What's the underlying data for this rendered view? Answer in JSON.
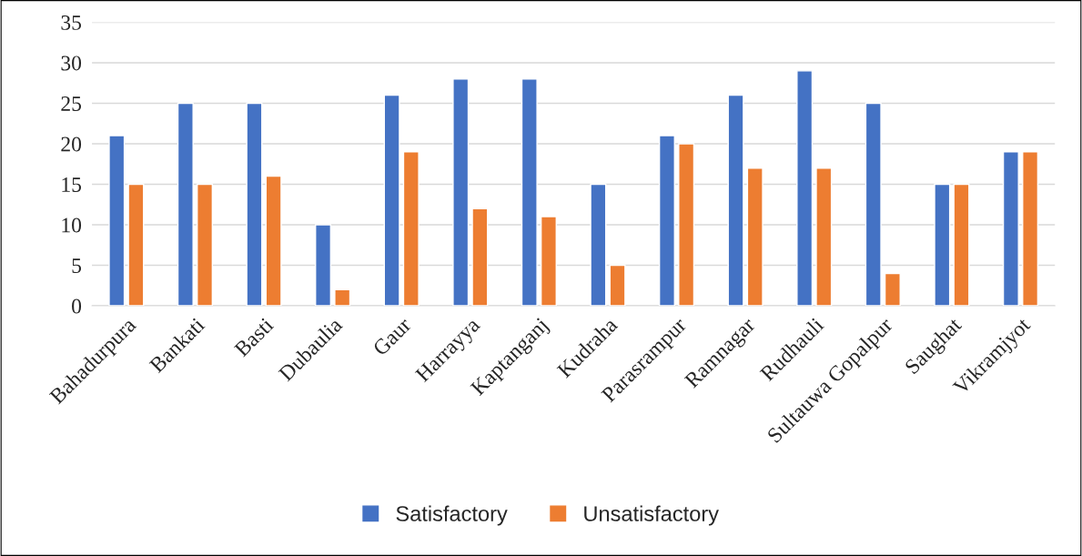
{
  "chart_data": {
    "type": "bar",
    "categories": [
      "Bahadurpura",
      "Bankati",
      "Basti",
      "Dubaulia",
      "Gaur",
      "Harrayya",
      "Kaptanganj",
      "Kudraha",
      "Parasrampur",
      "Ramnagar",
      "Rudhauli",
      "Sultauwa Gopalpur",
      "Saughat",
      "Vikramjyot"
    ],
    "series": [
      {
        "name": "Satisfactory",
        "color": "#4472c4",
        "values": [
          21,
          25,
          25,
          10,
          26,
          28,
          28,
          15,
          21,
          26,
          29,
          25,
          15,
          19
        ]
      },
      {
        "name": "Unsatisfactory",
        "color": "#ed7d31",
        "values": [
          15,
          15,
          16,
          2,
          19,
          12,
          11,
          5,
          20,
          17,
          17,
          4,
          15,
          19
        ]
      }
    ],
    "ylim": [
      0,
      35
    ],
    "yticks": [
      0,
      5,
      10,
      15,
      20,
      25,
      30,
      35
    ],
    "grid": "y",
    "legend": "bottom"
  }
}
